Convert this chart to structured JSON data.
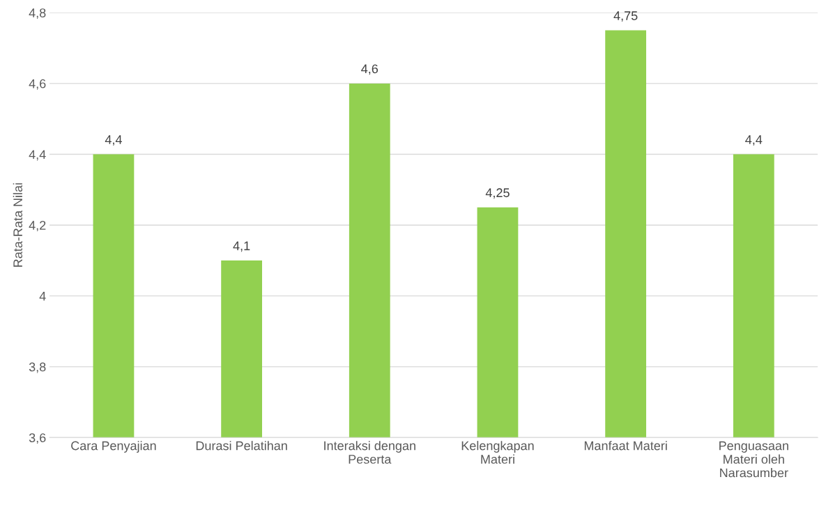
{
  "chart_data": {
    "type": "bar",
    "ylabel": "Rata-Rata Nilai",
    "categories": [
      "Cara Penyajian",
      "Durasi Pelatihan",
      "Interaksi dengan Peserta",
      "Kelengkapan Materi",
      "Manfaat Materi",
      "Penguasaan Materi oleh Narasumber"
    ],
    "values": [
      4.4,
      4.1,
      4.6,
      4.25,
      4.75,
      4.4
    ],
    "value_labels": [
      "4,4",
      "4,1",
      "4,6",
      "4,25",
      "4,75",
      "4,4"
    ],
    "color": "#92d050",
    "ylim": [
      3.6,
      4.8
    ],
    "yticks": [
      {
        "value": 3.6,
        "label": "3,6"
      },
      {
        "value": 3.8,
        "label": "3,8"
      },
      4,
      {
        "value": 4.2,
        "label": "4,2"
      },
      {
        "value": 4.4,
        "label": "4,4"
      },
      {
        "value": 4.6,
        "label": "4,6"
      },
      {
        "value": 4.8,
        "label": "4,8"
      }
    ],
    "grid": "y"
  }
}
